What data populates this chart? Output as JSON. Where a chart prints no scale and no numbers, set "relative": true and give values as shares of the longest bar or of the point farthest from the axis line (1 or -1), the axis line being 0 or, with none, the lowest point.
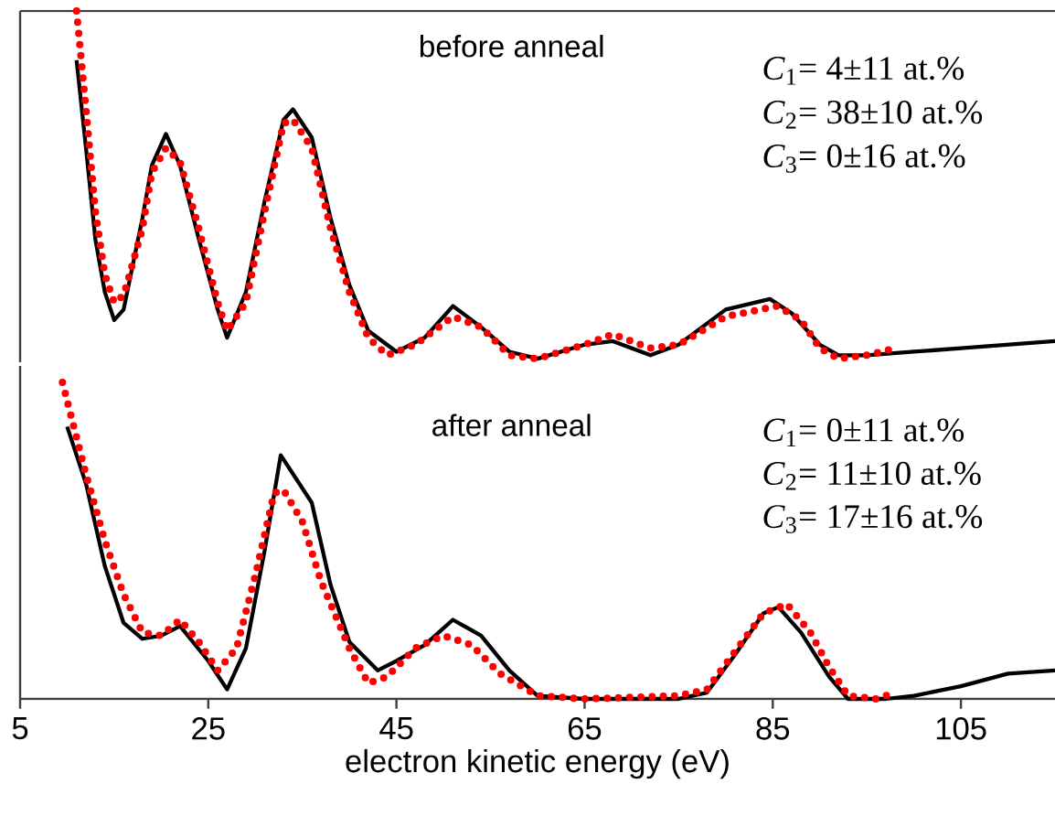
{
  "chart_data": [
    {
      "type": "line",
      "relative": true,
      "xlim": [
        5,
        115
      ],
      "tick_labels": false,
      "annotations": [
        "before anneal",
        "*C*$_{1}$= 4±11 at.%",
        "*C*$_{2}$= 38±10 at.%",
        "*C*$_{3}$= 0±16 at.%"
      ],
      "series": [
        {
          "color": "#000000",
          "line_style": "solid",
          "x": [
            11,
            12,
            13,
            14,
            15,
            16,
            18,
            19,
            20.5,
            22,
            24,
            26,
            27,
            29,
            31,
            33,
            34,
            36,
            38,
            40,
            42,
            45,
            48,
            51,
            54,
            57,
            60,
            65,
            68,
            72,
            75,
            80,
            84.7,
            87,
            90,
            92,
            95,
            100,
            105,
            110,
            115
          ],
          "values": [
            0.86,
            0.61,
            0.35,
            0.2,
            0.12,
            0.15,
            0.41,
            0.56,
            0.65,
            0.56,
            0.35,
            0.15,
            0.07,
            0.2,
            0.46,
            0.69,
            0.72,
            0.64,
            0.41,
            0.22,
            0.09,
            0.03,
            0.07,
            0.16,
            0.1,
            0.03,
            0.01,
            0.05,
            0.06,
            0.02,
            0.05,
            0.15,
            0.18,
            0.14,
            0.05,
            0.02,
            0.02,
            0.03,
            0.04,
            0.05,
            0.06
          ]
        },
        {
          "color": "#ff0000",
          "line_style": "dotted",
          "x": [
            11,
            12,
            13,
            14,
            15,
            16,
            18,
            19,
            20.5,
            22,
            24,
            26,
            27,
            29,
            31,
            33,
            34,
            36,
            38,
            40,
            42,
            44,
            47,
            51,
            54,
            57,
            60,
            65,
            68,
            72,
            75,
            80,
            85.5,
            88,
            90,
            92,
            95,
            98
          ],
          "values": [
            1.0,
            0.72,
            0.43,
            0.25,
            0.17,
            0.19,
            0.38,
            0.54,
            0.61,
            0.57,
            0.38,
            0.17,
            0.09,
            0.17,
            0.43,
            0.68,
            0.69,
            0.61,
            0.38,
            0.2,
            0.07,
            0.02,
            0.05,
            0.13,
            0.1,
            0.02,
            0.01,
            0.05,
            0.08,
            0.04,
            0.05,
            0.13,
            0.16,
            0.12,
            0.04,
            0.01,
            0.02,
            0.04
          ]
        }
      ]
    },
    {
      "type": "line",
      "relative": true,
      "xlim": [
        5,
        115
      ],
      "xticks": [
        5,
        25,
        45,
        65,
        85,
        105
      ],
      "tick_labels": "x",
      "xlabel": "electron kinetic energy (eV)",
      "annotations": [
        "after anneal",
        "*C*$_{1}$= 0±11 at.%",
        "*C*$_{2}$= 11±10 at.%",
        "*C*$_{3}$= 17±16 at.%"
      ],
      "series": [
        {
          "color": "#000000",
          "line_style": "solid",
          "x": [
            10,
            12,
            14,
            16,
            18,
            20,
            22,
            25,
            27,
            29,
            31,
            32.7,
            36,
            38,
            40,
            43,
            45,
            48,
            51,
            54,
            57,
            60,
            65,
            75,
            78,
            81,
            84,
            85.6,
            88,
            91,
            93,
            97,
            100,
            105,
            110,
            115
          ],
          "values": [
            0.86,
            0.68,
            0.42,
            0.24,
            0.19,
            0.2,
            0.23,
            0.12,
            0.03,
            0.16,
            0.47,
            0.77,
            0.62,
            0.36,
            0.18,
            0.09,
            0.12,
            0.17,
            0.25,
            0.2,
            0.09,
            0.01,
            0,
            0,
            0.02,
            0.14,
            0.27,
            0.29,
            0.21,
            0.07,
            0,
            0,
            0.01,
            0.04,
            0.08,
            0.09
          ]
        },
        {
          "color": "#ff0000",
          "line_style": "dotted",
          "x": [
            9.5,
            12,
            14,
            16,
            18,
            20,
            22,
            24,
            26,
            28,
            30,
            32,
            33,
            35,
            37,
            40,
            42,
            44,
            47,
            50,
            53,
            56,
            60,
            65,
            75,
            78,
            81,
            84,
            86.5,
            89,
            91,
            93,
            96,
            98
          ],
          "values": [
            1.0,
            0.71,
            0.5,
            0.33,
            0.21,
            0.2,
            0.25,
            0.18,
            0.09,
            0.16,
            0.39,
            0.65,
            0.66,
            0.56,
            0.37,
            0.16,
            0.05,
            0.07,
            0.16,
            0.2,
            0.17,
            0.08,
            0.01,
            0,
            0.01,
            0.03,
            0.15,
            0.27,
            0.3,
            0.21,
            0.1,
            0.01,
            0,
            0.02
          ]
        }
      ]
    }
  ]
}
